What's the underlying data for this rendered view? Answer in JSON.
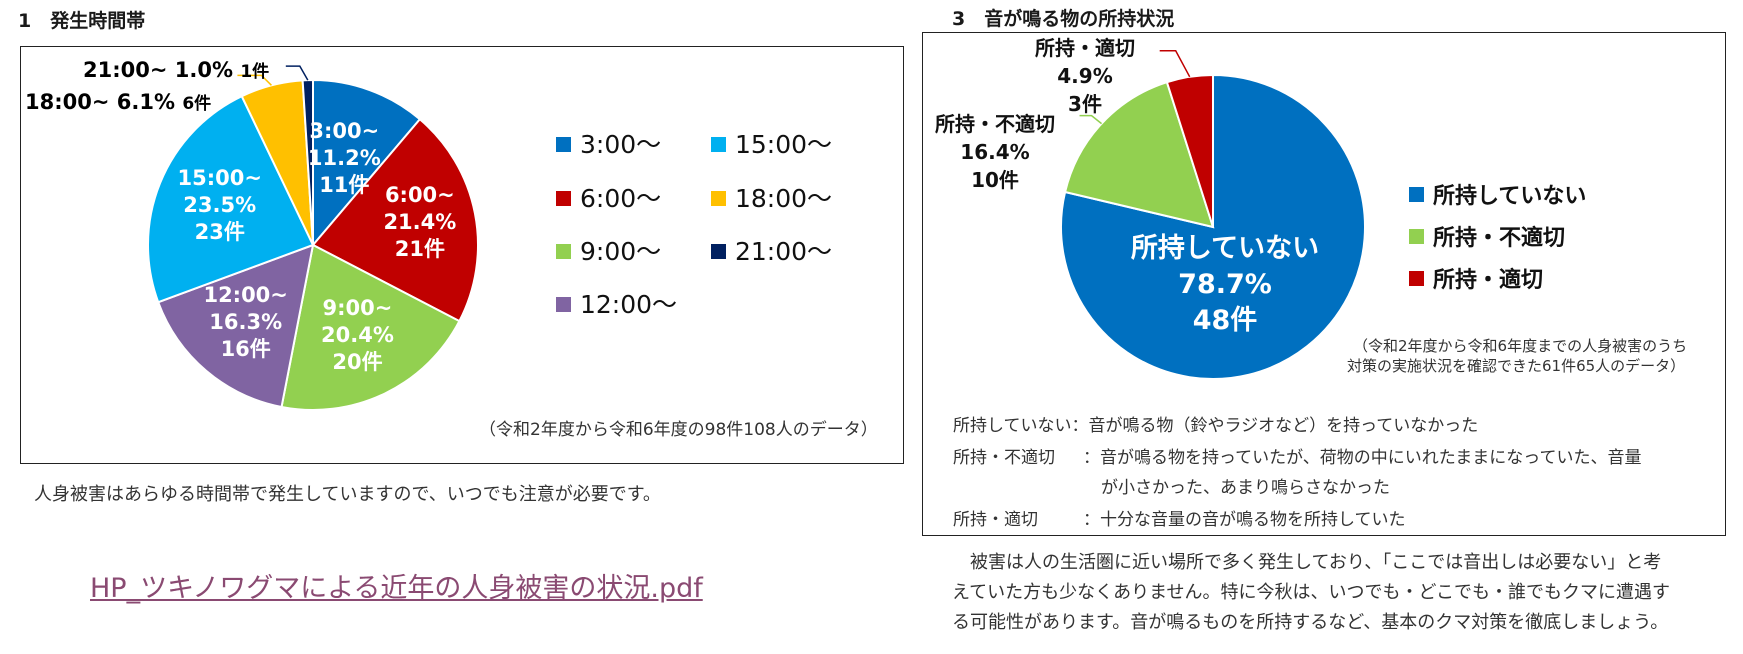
{
  "left": {
    "title": "1　発生時間帯",
    "note": "（令和2年度から令和6年度の98件108人のデータ）",
    "caption": "人身被害はあらゆる時間帯で発生していますので、いつでも注意が必要です。",
    "pdf_link": "HP_ツキノワグマによる近年の人身被害の状況.pdf"
  },
  "right": {
    "title": "3　音が鳴る物の所持状況",
    "note_line1": "（令和2年度から令和6年度までの人身被害のうち",
    "note_line2": "対策の実施状況を確認できた61件65人のデータ）",
    "definitions": [
      {
        "term": "所持していない",
        "sep": "：",
        "text": "音が鳴る物（鈴やラジオなど）を持っていなかった",
        "cont": ""
      },
      {
        "term": "所持・不適切",
        "sep": "：",
        "text": "音が鳴る物を持っていたが、荷物の中にいれたままになっていた、音量",
        "cont": "が小さかった、あまり鳴らさなかった"
      },
      {
        "term": "所持・適切",
        "sep": "：",
        "text": "十分な音量の音が鳴る物を所持していた",
        "cont": ""
      }
    ],
    "body": [
      "被害は人の生活圏に近い場所で多く発生しており、「ここでは音出しは必要ない」と考",
      "えていた方も少なくありません。特に今秋は、いつでも・どこでも・誰でもクマに遭遇す",
      "る可能性があります。音が鳴るものを所持するなど、基本のクマ対策を徹底しましょう。"
    ]
  },
  "chart_data": [
    {
      "type": "pie",
      "title": "発生時間帯",
      "categories": [
        "3:00〜",
        "6:00〜",
        "9:00〜",
        "12:00〜",
        "15:00〜",
        "18:00〜",
        "21:00〜"
      ],
      "values": [
        11.2,
        21.4,
        20.4,
        16.3,
        23.5,
        6.1,
        1.0
      ],
      "counts": [
        11,
        21,
        20,
        16,
        23,
        6,
        1
      ],
      "labels": [
        {
          "lines": [
            "3:00~",
            "11.2%",
            "11件"
          ]
        },
        {
          "lines": [
            "6:00~",
            "21.4%",
            "21件"
          ]
        },
        {
          "lines": [
            "9:00~",
            "20.4%",
            "20件"
          ]
        },
        {
          "lines": [
            "12:00~",
            "16.3%",
            "16件"
          ]
        },
        {
          "lines": [
            "15:00~",
            "23.5%",
            "23件"
          ]
        },
        {
          "lines": [
            "18:00~",
            "6.1%",
            "6件"
          ]
        },
        {
          "lines": [
            "21:00~",
            "1.0%",
            "1件"
          ]
        }
      ],
      "colors": [
        "#0070c0",
        "#c00000",
        "#92d050",
        "#8064a2",
        "#00b0f0",
        "#ffc000",
        "#002060"
      ],
      "legend": [
        "3:00〜",
        "15:00〜",
        "6:00〜",
        "18:00〜",
        "9:00〜",
        "21:00〜",
        "12:00〜"
      ],
      "legend_colors": [
        "#0070c0",
        "#00b0f0",
        "#c00000",
        "#ffc000",
        "#92d050",
        "#002060",
        "#8064a2"
      ],
      "legend_position": "right"
    },
    {
      "type": "pie",
      "title": "音が鳴る物の所持状況",
      "categories": [
        "所持していない",
        "所持・不適切",
        "所持・適切"
      ],
      "values": [
        78.7,
        16.4,
        4.9
      ],
      "counts": [
        48,
        10,
        3
      ],
      "labels": [
        {
          "lines": [
            "所持していない",
            "78.7%",
            "48件"
          ]
        },
        {
          "lines": [
            "所持・不適切",
            "16.4%",
            "10件"
          ]
        },
        {
          "lines": [
            "所持・適切",
            "4.9%",
            "3件"
          ]
        }
      ],
      "colors": [
        "#0070c0",
        "#92d050",
        "#c00000"
      ],
      "legend": [
        "所持していない",
        "所持・不適切",
        "所持・適切"
      ],
      "legend_position": "right"
    }
  ]
}
